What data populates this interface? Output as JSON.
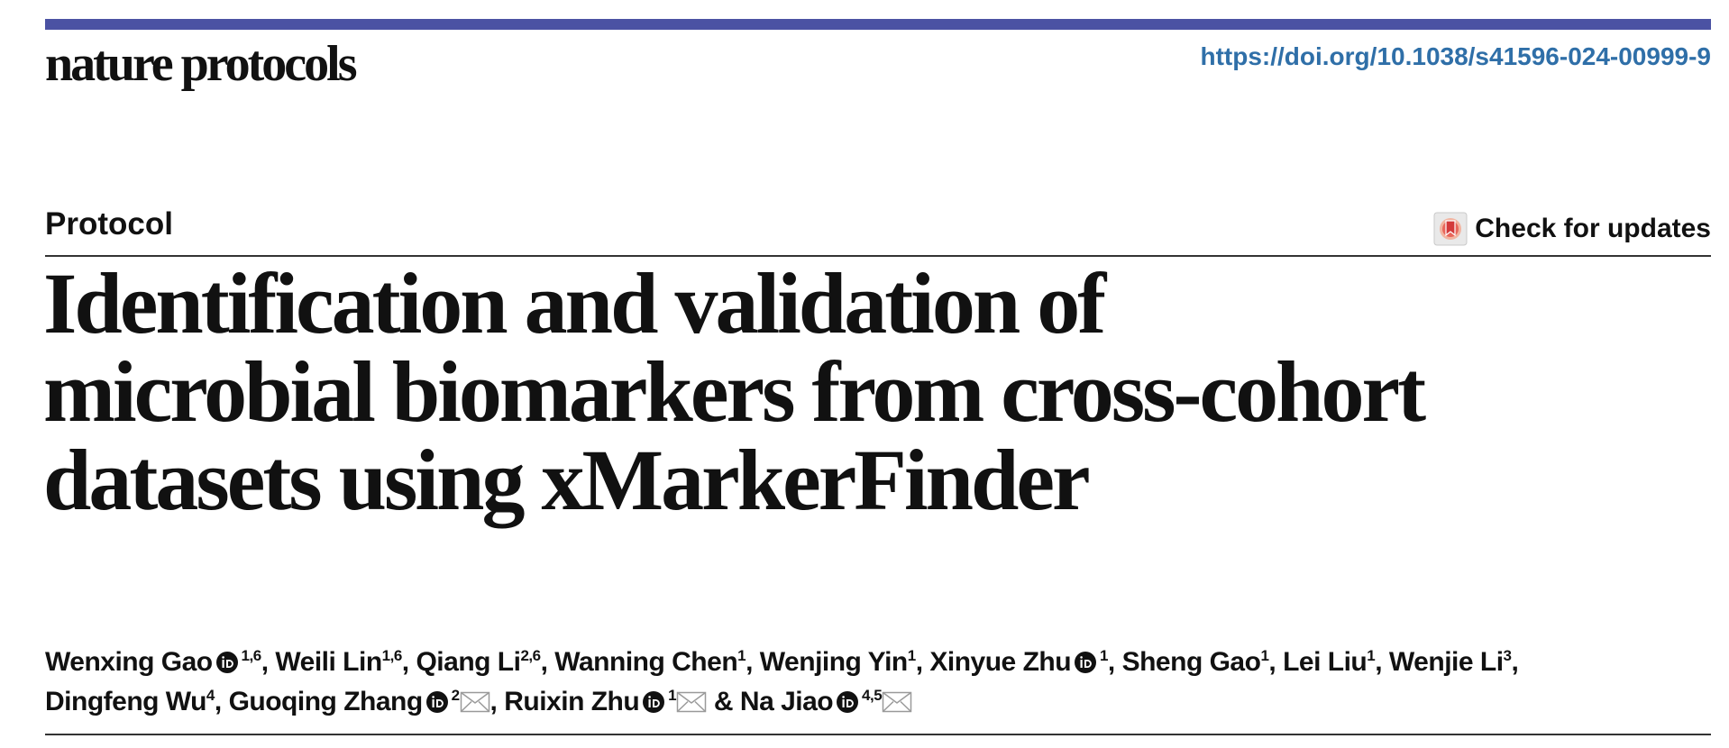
{
  "header": {
    "journal": "nature protocols",
    "doi": "https://doi.org/10.1038/s41596-024-00999-9",
    "accent_color": "#4b52a3",
    "link_color": "#2f6fa8"
  },
  "article": {
    "type": "Protocol",
    "check_updates": "Check for updates",
    "title_lines": [
      "Identification and validation of",
      "microbial biomarkers from cross-cohort",
      "datasets using xMarkerFinder"
    ]
  },
  "authors": {
    "lines": [
      [
        {
          "name": "Wenxing Gao",
          "orcid": true,
          "affil": "1,6",
          "email": false,
          "sep": ", "
        },
        {
          "name": "Weili Lin",
          "orcid": false,
          "affil": "1,6",
          "email": false,
          "sep": ", "
        },
        {
          "name": "Qiang Li",
          "orcid": false,
          "affil": "2,6",
          "email": false,
          "sep": ", "
        },
        {
          "name": "Wanning Chen",
          "orcid": false,
          "affil": "1",
          "email": false,
          "sep": ", "
        },
        {
          "name": "Wenjing Yin",
          "orcid": false,
          "affil": "1",
          "email": false,
          "sep": ", "
        },
        {
          "name": "Xinyue Zhu",
          "orcid": true,
          "affil": "1",
          "email": false,
          "sep": ", "
        },
        {
          "name": "Sheng Gao",
          "orcid": false,
          "affil": "1",
          "email": false,
          "sep": ", "
        },
        {
          "name": "Lei Liu",
          "orcid": false,
          "affil": "1",
          "email": false,
          "sep": ", "
        },
        {
          "name": "Wenjie Li",
          "orcid": false,
          "affil": "3",
          "email": false,
          "sep": ","
        }
      ],
      [
        {
          "name": "Dingfeng Wu",
          "orcid": false,
          "affil": "4",
          "email": false,
          "sep": ", "
        },
        {
          "name": "Guoqing Zhang",
          "orcid": true,
          "affil": "2",
          "email": true,
          "sep": ", "
        },
        {
          "name": "Ruixin Zhu",
          "orcid": true,
          "affil": "1",
          "email": true,
          "sep": " & "
        },
        {
          "name": "Na Jiao",
          "orcid": true,
          "affil": "4,5",
          "email": true,
          "sep": ""
        }
      ]
    ],
    "icons": {
      "orcid": "orcid-icon",
      "email": "email-envelope-icon",
      "updates": "check-for-updates-icon"
    }
  }
}
